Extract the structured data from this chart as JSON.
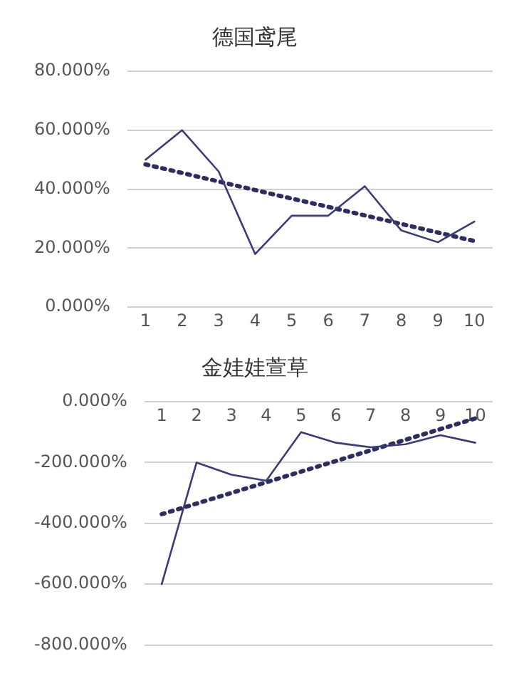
{
  "chart_data": [
    {
      "type": "line",
      "title": "德国鸢尾",
      "x": [
        1,
        2,
        3,
        4,
        5,
        6,
        7,
        8,
        9,
        10
      ],
      "xlim": [
        0.5,
        10.5
      ],
      "xticks": [
        1,
        2,
        3,
        4,
        5,
        6,
        7,
        8,
        9,
        10
      ],
      "series": [
        {
          "color": "#3c3c74",
          "values": [
            50,
            60,
            46,
            18,
            31,
            31,
            41,
            26,
            22,
            29
          ],
          "line_style": "solid"
        },
        {
          "color": "#2e2e5e",
          "values": [
            48.4,
            45.5,
            42.6,
            39.7,
            36.8,
            34.0,
            31.1,
            28.2,
            25.3,
            22.4
          ],
          "line_style": "dotted"
        }
      ],
      "ylim": [
        0,
        80
      ],
      "yticks": [
        {
          "value": 0,
          "label": "0.000%"
        },
        {
          "value": 20,
          "label": "20.000%"
        },
        {
          "value": 40,
          "label": "40.000%"
        },
        {
          "value": 60,
          "label": "60.000%"
        },
        {
          "value": 80,
          "label": "80.000%"
        }
      ],
      "grid": "y",
      "marker": "none"
    },
    {
      "type": "line",
      "title": "金娃娃萱草",
      "x": [
        1,
        2,
        3,
        4,
        5,
        6,
        7,
        8,
        9,
        10
      ],
      "xlim": [
        0.5,
        10.5
      ],
      "xticks": [
        1,
        2,
        3,
        4,
        5,
        6,
        7,
        8,
        9,
        10
      ],
      "series": [
        {
          "color": "#3c3c74",
          "values": [
            -600,
            -200,
            -240,
            -260,
            -100,
            -135,
            -150,
            -140,
            -110,
            -135
          ],
          "line_style": "solid"
        },
        {
          "color": "#2e2e5e",
          "values": [
            -370,
            -335,
            -300,
            -265,
            -230,
            -195,
            -160,
            -125,
            -90,
            -55
          ],
          "line_style": "dotted"
        }
      ],
      "ylim": [
        -800,
        0
      ],
      "yticks": [
        {
          "value": -800,
          "label": "-800.000%"
        },
        {
          "value": -600,
          "label": "-600.000%"
        },
        {
          "value": -400,
          "label": "-400.000%"
        },
        {
          "value": -200,
          "label": "-200.000%"
        },
        {
          "value": 0,
          "label": "0.000%"
        }
      ],
      "grid": "y",
      "marker": "none"
    }
  ]
}
